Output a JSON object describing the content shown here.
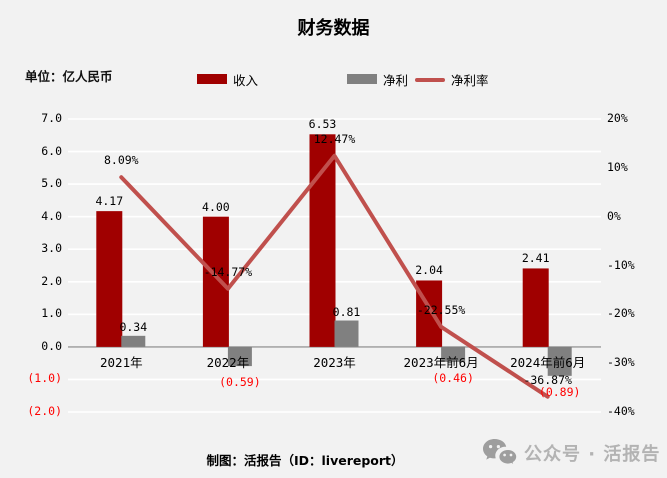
{
  "page": {
    "background": "#F2F2F2"
  },
  "header": {
    "title": "财务数据",
    "unit_label": "单位：亿人民币"
  },
  "legend": [
    {
      "label": "收入",
      "type": "bar",
      "color": "#A00000"
    },
    {
      "label": "净利",
      "type": "bar",
      "color": "#808080"
    },
    {
      "label": "净利率",
      "type": "line",
      "color": "#C0504D"
    }
  ],
  "chart_data": {
    "type": "combo-bar-line",
    "title": "财务数据",
    "categories": [
      "2021年",
      "2022年",
      "2023年",
      "2023年前6月",
      "2024年前6月"
    ],
    "series": [
      {
        "name": "收入",
        "type": "bar",
        "axis": "left",
        "color": "#A00000",
        "values": [
          4.17,
          4.0,
          6.53,
          2.04,
          2.41
        ],
        "labels": [
          "4.17",
          "4.00",
          "6.53",
          "2.04",
          "2.41"
        ]
      },
      {
        "name": "净利",
        "type": "bar",
        "axis": "left",
        "color": "#808080",
        "values": [
          0.34,
          -0.59,
          0.81,
          -0.46,
          -0.89
        ],
        "labels": [
          "0.34",
          "(0.59)",
          "0.81",
          "(0.46)",
          "(0.89)"
        ]
      },
      {
        "name": "净利率",
        "type": "line",
        "axis": "right",
        "color": "#C0504D",
        "values": [
          8.09,
          -14.77,
          12.47,
          -22.55,
          -36.87
        ],
        "labels": [
          "8.09%",
          "-14.77%",
          "12.47%",
          "-22.55%",
          "-36.87%"
        ]
      }
    ],
    "left_axis": {
      "max": 7,
      "min": -2,
      "step": 1,
      "tick_labels": [
        "7.0",
        "6.0",
        "5.0",
        "4.0",
        "3.0",
        "2.0",
        "1.0",
        "0.0",
        "(1.0)",
        "(2.0)"
      ],
      "negative_color": "#FF0000"
    },
    "right_axis": {
      "max": 20,
      "min": -40,
      "step": 10,
      "tick_labels": [
        "20%",
        "10%",
        "0%",
        "-10%",
        "-20%",
        "-30%",
        "-40%"
      ]
    },
    "grid": true,
    "gridline_color": "#FFFFFF",
    "axis_line_color": "#A6A6A6",
    "negative_label_color": "#FF0000"
  },
  "footer": {
    "credit": "制图：活报告（ID：livereport）"
  },
  "watermark": {
    "icon": "wechat-icon",
    "text": "公众号 · 活报告"
  }
}
